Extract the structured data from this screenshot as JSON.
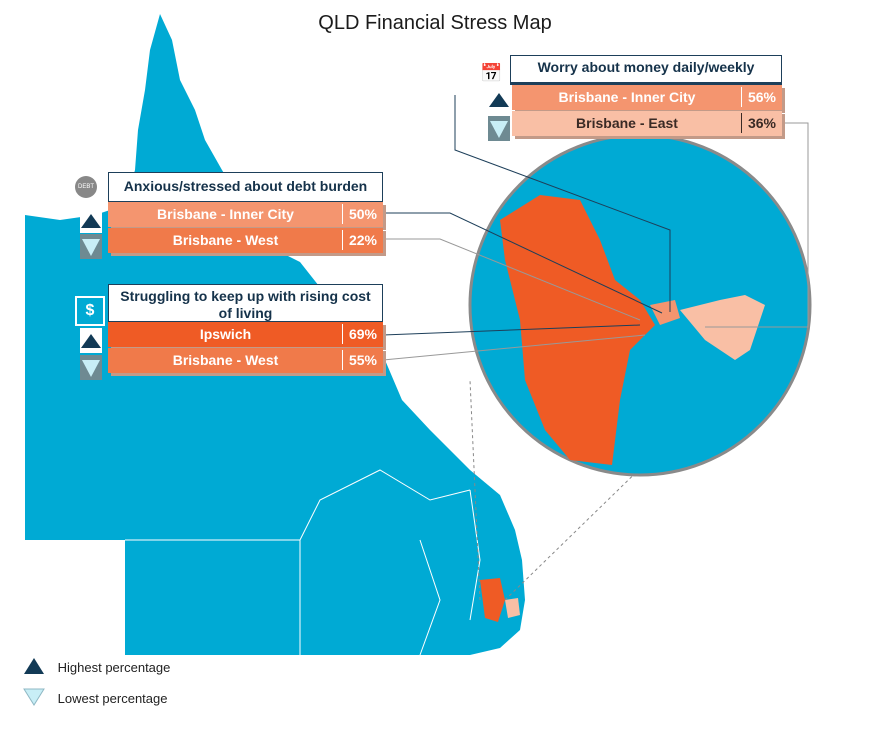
{
  "title": "QLD Financial Stress Map",
  "colors": {
    "land": "#00aad4",
    "highlight_high": "#ef5b25",
    "highlight_mid": "#f07a4a",
    "highlight_light": "#f4956f",
    "highlight_pale": "#f9bfa5",
    "header_border": "#1d3f5a"
  },
  "panels": [
    {
      "icon": "calendar-alert-icon",
      "heading": "Worry about money daily/weekly",
      "rows": [
        {
          "region": "Brisbane - Inner City",
          "value": "56%",
          "rank": "highest"
        },
        {
          "region": "Brisbane - East",
          "value": "36%",
          "rank": "lowest"
        }
      ]
    },
    {
      "icon": "debt-bomb-icon",
      "heading": "Anxious/stressed about debt burden",
      "rows": [
        {
          "region": "Brisbane - Inner City",
          "value": "50%",
          "rank": "highest"
        },
        {
          "region": "Brisbane - West",
          "value": "22%",
          "rank": "lowest"
        }
      ]
    },
    {
      "icon": "house-dollar-icon",
      "heading": "Struggling to keep up with rising cost of living",
      "rows": [
        {
          "region": "Ipswich",
          "value": "69%",
          "rank": "highest"
        },
        {
          "region": "Brisbane - West",
          "value": "55%",
          "rank": "lowest"
        }
      ]
    }
  ],
  "legend": {
    "highest": "Highest percentage",
    "lowest": "Lowest percentage"
  }
}
